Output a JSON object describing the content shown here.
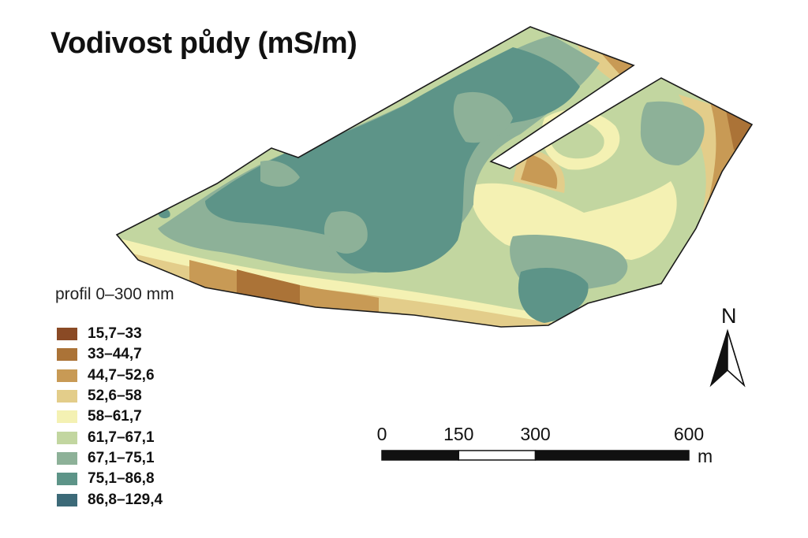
{
  "title": "Vodivost půdy (mS/m)",
  "profile": "profil 0–300 mm",
  "legend": [
    {
      "label": "15,7–33",
      "color": "#8a4a25"
    },
    {
      "label": "33–44,7",
      "color": "#ab7337"
    },
    {
      "label": "44,7–52,6",
      "color": "#c89a55"
    },
    {
      "label": "52,6–58",
      "color": "#e3cd8a"
    },
    {
      "label": "58–61,7",
      "color": "#f4f1b3"
    },
    {
      "label": "61,7–67,1",
      "color": "#c2d6a0"
    },
    {
      "label": "67,1–75,1",
      "color": "#8db198"
    },
    {
      "label": "75,1–86,8",
      "color": "#5d9488"
    },
    {
      "label": "86,8–129,4",
      "color": "#3c6a78"
    }
  ],
  "scale": {
    "ticks": [
      {
        "label": "0",
        "value": 0
      },
      {
        "label": "150",
        "value": 150
      },
      {
        "label": "300",
        "value": 300
      },
      {
        "label": "600",
        "value": 600
      }
    ],
    "unit": "m"
  },
  "north": {
    "label": "N",
    "icon": "north-arrow-icon"
  }
}
